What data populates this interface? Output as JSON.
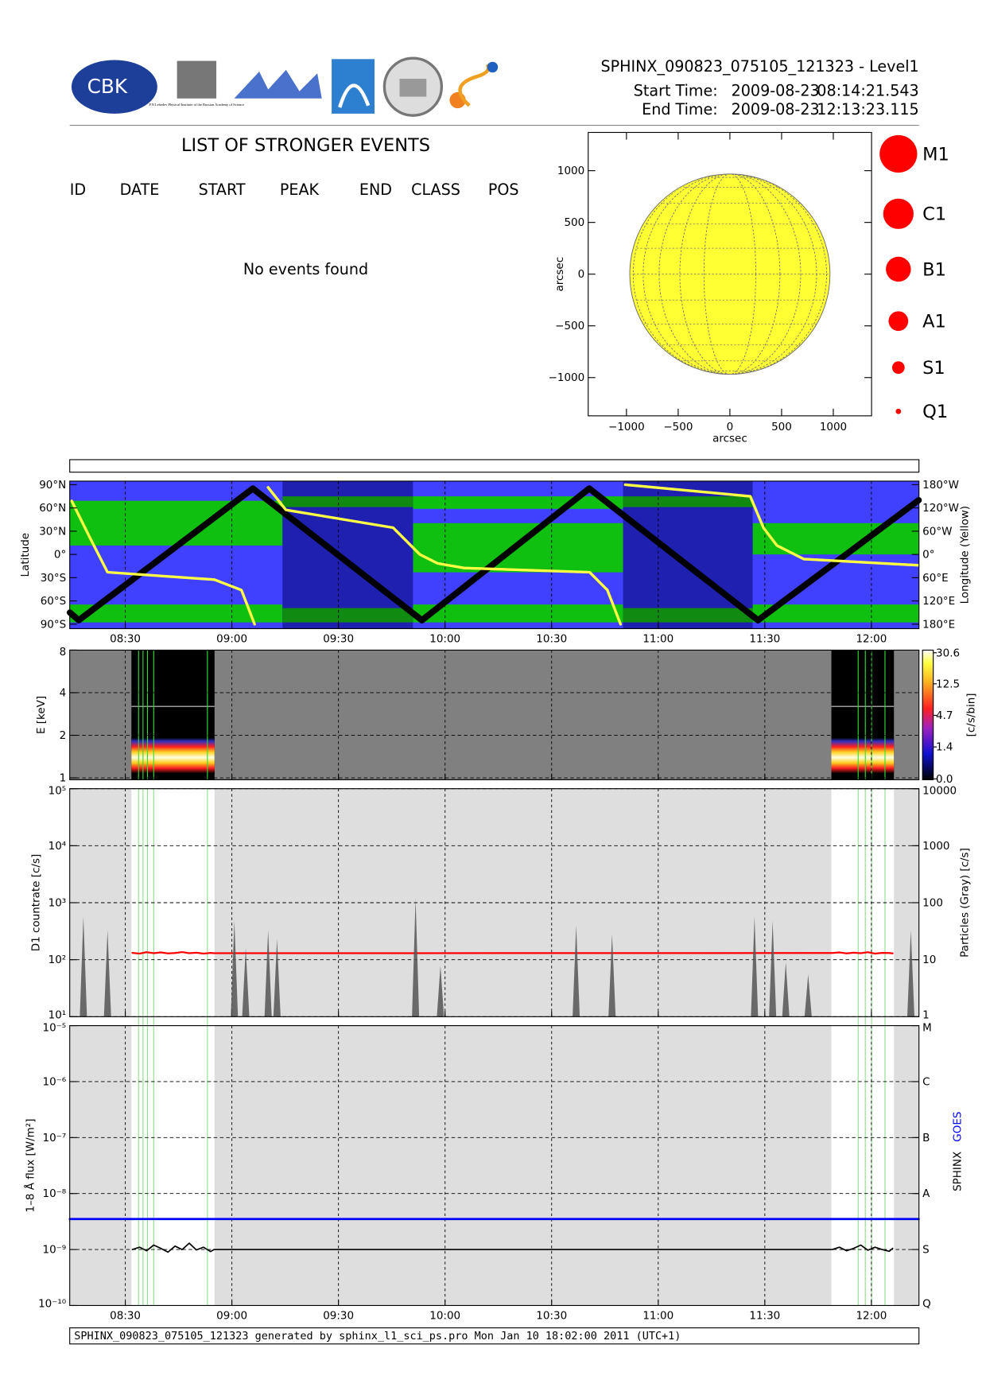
{
  "header": {
    "title": "SPHINX_090823_075105_121323 - Level1",
    "start_label": "Start Time:",
    "start_date": "2009-08-23",
    "start_time": "08:14:21.543",
    "end_label": "End Time:",
    "end_date": "2009-08-23",
    "end_time": "12:13:23.115",
    "logo_cbk": "CBK",
    "logo_lebedev": "P.N.Lebedev Physical Institute of the Russian Academy of Science"
  },
  "events": {
    "title": "LIST OF STRONGER EVENTS",
    "columns": [
      "ID",
      "DATE",
      "START",
      "PEAK",
      "END",
      "CLASS",
      "POS"
    ],
    "message": "No events found"
  },
  "footer": "SPHINX_090823_075105_121323 generated by sphinx_l1_sci_ps.pro Mon Jan 10 18:02:00 2011 (UTC+1)",
  "chart_data": [
    {
      "type": "map",
      "xlabel": "arcsec",
      "ylabel": "arcsec",
      "xlim": [
        -1370,
        1370
      ],
      "ylim": [
        -1370,
        1370
      ],
      "xticks": [
        {
          "value": -1000,
          "label": "−1000"
        },
        {
          "value": -500,
          "label": "−500"
        },
        0,
        500,
        1000
      ],
      "yticks": [
        {
          "value": -1000,
          "label": "−1000"
        },
        {
          "value": -500,
          "label": "−500"
        },
        0,
        500,
        1000
      ],
      "color": "#ffff33",
      "legend": [
        "M1",
        "C1",
        "B1",
        "A1",
        "S1",
        "Q1"
      ],
      "legend_color": "#ff0000"
    },
    {
      "type": "line",
      "ylabel": "Latitude",
      "y2label": "Longitude (Yellow)",
      "xlim": [
        494.359,
        733.385
      ],
      "xticks": [
        {
          "value": 510,
          "label": "08:30"
        },
        {
          "value": 540,
          "label": "09:00"
        },
        {
          "value": 570,
          "label": "09:30"
        },
        {
          "value": 600,
          "label": "10:00"
        },
        {
          "value": 630,
          "label": "10:30"
        },
        {
          "value": 660,
          "label": "11:00"
        },
        {
          "value": 690,
          "label": "11:30"
        },
        {
          "value": 720,
          "label": "12:00"
        }
      ],
      "ylim": [
        -95.8,
        94.6
      ],
      "yticks": [
        {
          "value": 90,
          "label": "90°N"
        },
        {
          "value": 60,
          "label": "60°N"
        },
        {
          "value": 30,
          "label": "30°N"
        },
        {
          "value": 0,
          "label": "0°"
        },
        {
          "value": -30,
          "label": "30°S"
        },
        {
          "value": -60,
          "label": "60°S"
        },
        {
          "value": -90,
          "label": "90°S"
        }
      ],
      "y2lim": [
        -191.5,
        189.2
      ],
      "y2ticks": [
        {
          "value": 180,
          "label": "180°W"
        },
        {
          "value": 120,
          "label": "120°W"
        },
        {
          "value": 60,
          "label": "60°W"
        },
        {
          "value": 0,
          "label": "0°"
        },
        {
          "value": -60,
          "label": "60°E"
        },
        {
          "value": -120,
          "label": "120°E"
        },
        {
          "value": -180,
          "label": "180°E"
        }
      ],
      "series": [
        {
          "color": "#000000",
          "x": [
            494.4,
            496.9,
            545.9,
            593.5,
            640.6,
            688.1,
            733.3
          ],
          "values": [
            -75,
            -85,
            85,
            -85,
            85,
            -85,
            70
          ]
        },
        {
          "color": "#ffff44",
          "axis": "y2",
          "x": [
            494.9,
            499.9,
            505,
            535.1,
            542.7,
            546.4,
            548.3,
            550.2,
            555.2,
            585.4,
            592.9,
            597.9,
            605.4,
            640.7,
            645.7,
            649.4,
            650.0,
            650.7,
            685.9,
            689.6,
            693.4,
            701,
            733.1
          ],
          "values": [
            138,
            46,
            -46,
            -65,
            -92,
            -180,
            null,
            173,
            115,
            69,
            0,
            -23,
            -35,
            -46,
            -92,
            -180,
            null,
            180,
            150,
            69,
            23,
            -12,
            -28
          ]
        }
      ]
    },
    {
      "type": "heatmap",
      "ylabel": "E [keV]",
      "yscale": "log",
      "ylim": [
        0.97,
        8
      ],
      "yticks": [
        1,
        2,
        4,
        8
      ],
      "colorbar": {
        "label": "[c/s/bin]",
        "ticks": [
          30.6,
          12.5,
          4.7,
          1.4,
          {
            "value": 0,
            "label": "0.0"
          }
        ]
      }
    },
    {
      "type": "line",
      "ylabel": "D1 countrate [c/s]",
      "y2label": "Particles (Gray) [c/s]",
      "yscale": "log",
      "ylim": [
        10,
        100000
      ],
      "yticks": [
        {
          "value": 10,
          "label": "10¹"
        },
        {
          "value": 100,
          "label": "10²"
        },
        {
          "value": 1000,
          "label": "10³"
        },
        {
          "value": 10000,
          "label": "10⁴"
        },
        {
          "value": 100000,
          "label": "10⁵"
        }
      ],
      "y2lim": [
        1,
        10000
      ],
      "y2ticks": [
        1,
        10,
        100,
        1000,
        10000
      ],
      "series": [
        {
          "color": "#ff0000",
          "x": [
            512,
            514,
            516,
            518,
            520,
            522,
            524,
            526,
            528,
            530,
            532,
            534,
            535,
            709,
            711,
            713,
            715,
            717,
            719,
            721,
            723,
            725,
            726
          ],
          "values": [
            132,
            128,
            135,
            130,
            134,
            129,
            131,
            136,
            130,
            133,
            128,
            132,
            130,
            131,
            134,
            129,
            133,
            130,
            135,
            128,
            132,
            131,
            129
          ]
        },
        {
          "color": "#555555",
          "axis": "y2",
          "style": "bars",
          "x": [
            498.2,
            505,
            540.7,
            543.9,
            550.2,
            552.7,
            591.7,
            598.7,
            636.9,
            647,
            687.1,
            692.2,
            695.9,
            702.2,
            731.1
          ],
          "values": [
            57,
            33,
            48,
            16,
            33,
            23,
            117,
            7.8,
            40,
            28,
            57,
            48,
            9,
            5.5,
            33
          ]
        }
      ]
    },
    {
      "type": "line",
      "ylabel": "1–8 Å flux [W/m²]",
      "yscale": "log",
      "xlim": [
        494.359,
        733.385
      ],
      "xticks": [
        {
          "value": 510,
          "label": "08:30"
        },
        {
          "value": 540,
          "label": "09:00"
        },
        {
          "value": 570,
          "label": "09:30"
        },
        {
          "value": 600,
          "label": "10:00"
        },
        {
          "value": 630,
          "label": "10:30"
        },
        {
          "value": 660,
          "label": "11:00"
        },
        {
          "value": 690,
          "label": "11:30"
        },
        {
          "value": 720,
          "label": "12:00"
        }
      ],
      "ylim": [
        1e-10,
        1e-05
      ],
      "yticks": [
        {
          "value": 1e-10,
          "label": "10⁻¹⁰"
        },
        {
          "value": 1e-09,
          "label": "10⁻⁹"
        },
        {
          "value": 1e-08,
          "label": "10⁻⁸"
        },
        {
          "value": 1e-07,
          "label": "10⁻⁷"
        },
        {
          "value": 1e-06,
          "label": "10⁻⁶"
        },
        {
          "value": 1e-05,
          "label": "10⁻⁵"
        }
      ],
      "y2ticks": [
        {
          "value": 1e-05,
          "label": "M"
        },
        {
          "value": 1e-06,
          "label": "C"
        },
        {
          "value": 1e-07,
          "label": "B"
        },
        {
          "value": 1e-08,
          "label": "A"
        },
        {
          "value": 1e-09,
          "label": "S"
        },
        {
          "value": 1e-10,
          "label": "Q"
        }
      ],
      "series": [
        {
          "name": "SPHINX",
          "color": "#000000",
          "x": [
            512,
            514,
            516,
            518,
            520,
            522,
            524,
            526,
            528,
            530,
            532,
            534,
            535,
            709,
            711,
            713,
            715,
            717,
            719,
            721,
            723,
            725,
            726
          ],
          "values": [
            1e-09,
            1.1e-09,
            9.5e-10,
            1.2e-09,
            1.05e-09,
            9e-10,
            1.15e-09,
            1e-09,
            1.3e-09,
            9.8e-10,
            1.1e-09,
            9.2e-10,
            1e-09,
            1e-09,
            1.1e-09,
            9.5e-10,
            1.05e-09,
            1.2e-09,
            9.7e-10,
            1.1e-09,
            1e-09,
            9.3e-10,
            1.05e-09
          ]
        },
        {
          "name": "GOES",
          "color": "#0000ff",
          "x": [
            494.4,
            733.3
          ],
          "values": [
            3.5e-09,
            3.5e-09
          ]
        }
      ]
    }
  ]
}
